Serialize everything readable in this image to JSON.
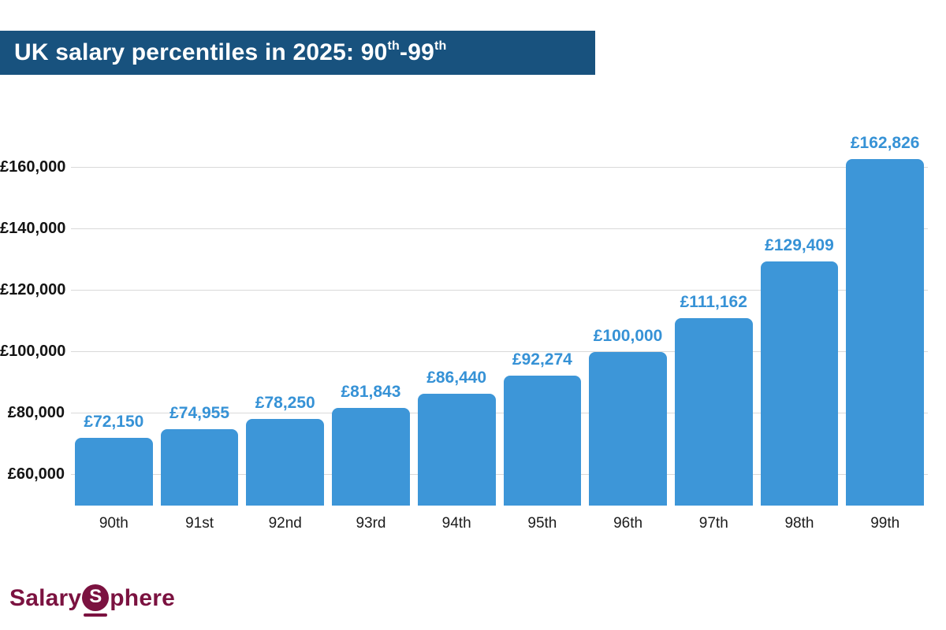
{
  "title": {
    "segments": [
      {
        "text": "UK salary percentiles in 2025: 90",
        "sup": false
      },
      {
        "text": "th",
        "sup": true
      },
      {
        "text": "-99",
        "sup": false
      },
      {
        "text": "th",
        "sup": true
      }
    ],
    "full_text": "UK salary percentiles in 2025: 90th-99th"
  },
  "chart_data": {
    "type": "bar",
    "title": "UK salary percentiles in 2025: 90th-99th",
    "categories": [
      "90th",
      "91st",
      "92nd",
      "93rd",
      "94th",
      "95th",
      "96th",
      "97th",
      "98th",
      "99th"
    ],
    "values": [
      72150,
      74955,
      78250,
      81843,
      86440,
      92274,
      100000,
      111162,
      129409,
      162826
    ],
    "value_labels": [
      "£72,150",
      "£74,955",
      "£78,250",
      "£81,843",
      "£86,440",
      "£92,274",
      "£100,000",
      "£111,162",
      "£129,409",
      "£162,826"
    ],
    "xlabel": "",
    "ylabel": "",
    "ylim": [
      50000,
      173000
    ],
    "yticks": [
      {
        "value": 60000,
        "label": "£60,000"
      },
      {
        "value": 80000,
        "label": "£80,000"
      },
      {
        "value": 100000,
        "label": "£100,000"
      },
      {
        "value": 120000,
        "label": "£120,000"
      },
      {
        "value": 140000,
        "label": "£140,000"
      },
      {
        "value": 160000,
        "label": "£160,000"
      }
    ],
    "grid": true,
    "legend": "none",
    "colors": {
      "bar": "#3d96d8",
      "value_label": "#3692d6",
      "gridline": "#d9d9d9",
      "tick_text": "#141414",
      "banner_bg": "#18527e",
      "banner_text": "#ffffff"
    }
  },
  "branding": {
    "logo_part1": "Salary",
    "logo_circle_letter": "S",
    "logo_part2": "phere",
    "color": "#7b1240"
  }
}
